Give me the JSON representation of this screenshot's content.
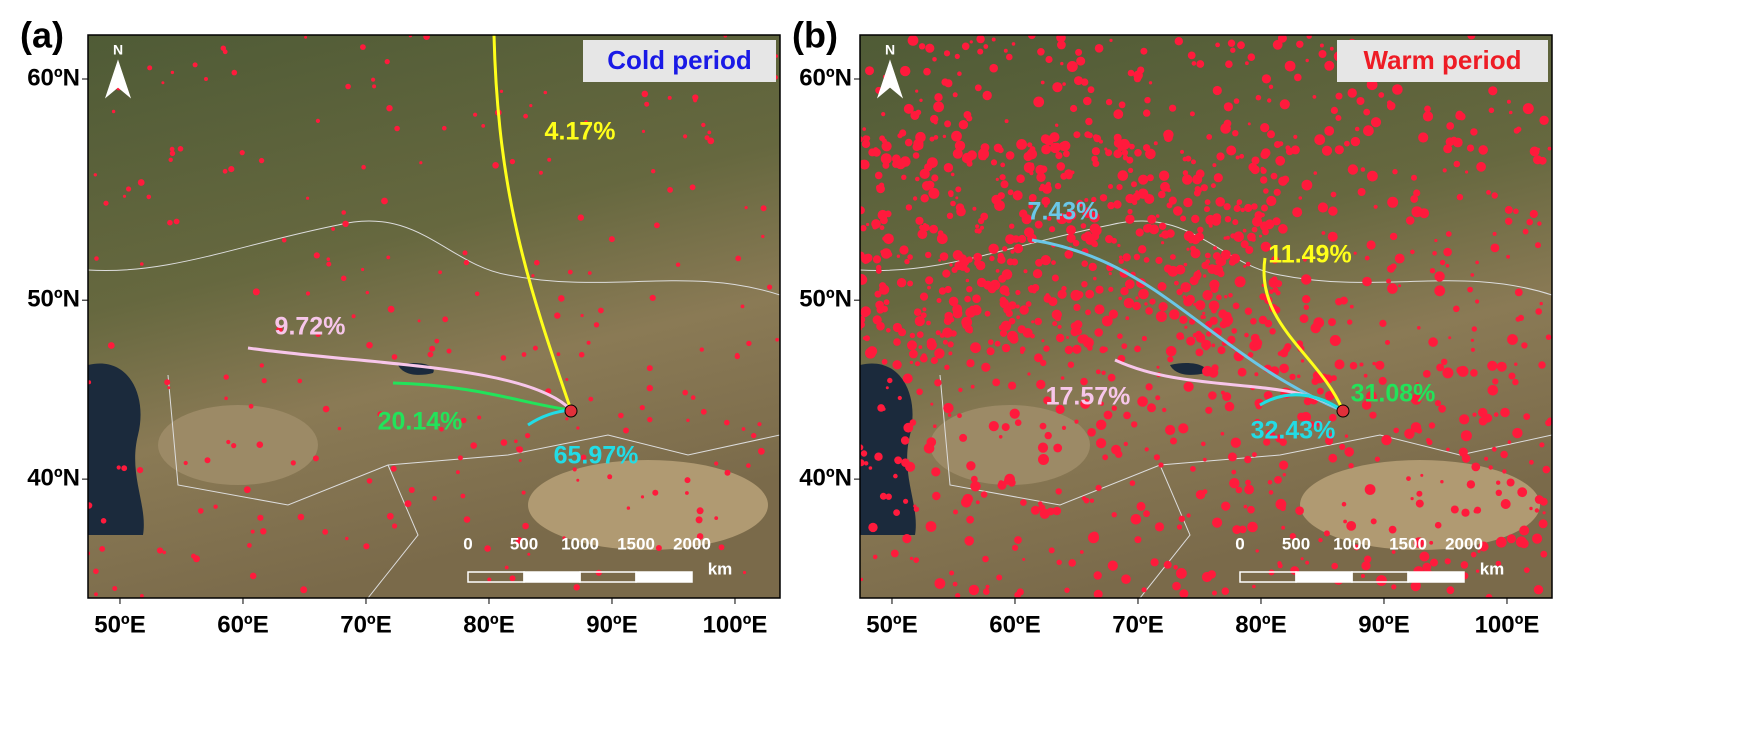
{
  "panels": [
    {
      "label": "(a)",
      "title": "Cold period",
      "title_color": "#1a1ae6",
      "clusters": [
        {
          "label": "4.17%",
          "color": "#ffff1a"
        },
        {
          "label": "9.72%",
          "color": "#f7c6ea"
        },
        {
          "label": "20.14%",
          "color": "#22e35a"
        },
        {
          "label": "65.97%",
          "color": "#22dce6"
        }
      ]
    },
    {
      "label": "(b)",
      "title": "Warm period",
      "title_color": "#ee1c25",
      "clusters": [
        {
          "label": "7.43%",
          "color": "#6ac7e8"
        },
        {
          "label": "11.49%",
          "color": "#ffff1a"
        },
        {
          "label": "17.57%",
          "color": "#f7c6ea"
        },
        {
          "label": "31.08%",
          "color": "#22e35a"
        },
        {
          "label": "32.43%",
          "color": "#22dce6"
        }
      ]
    }
  ],
  "extent": {
    "lon": [
      47.4,
      103.66
    ],
    "lat": [
      32.4,
      61.7
    ]
  },
  "lon_ticks": [
    {
      "value": 50,
      "label": "50ºE"
    },
    {
      "value": 60,
      "label": "60ºE"
    },
    {
      "value": 70,
      "label": "70ºE"
    },
    {
      "value": 80,
      "label": "80ºE"
    },
    {
      "value": 90,
      "label": "90ºE"
    },
    {
      "value": 100,
      "label": "100ºE"
    }
  ],
  "lat_ticks": [
    {
      "value": 40,
      "label": "40ºN"
    },
    {
      "value": 50,
      "label": "50ºN"
    },
    {
      "value": 60,
      "label": "60ºN"
    }
  ],
  "north": "N",
  "scale_bar": {
    "ticks": [
      "0",
      "500",
      "1000",
      "1500",
      "2000"
    ],
    "unit": "km"
  }
}
